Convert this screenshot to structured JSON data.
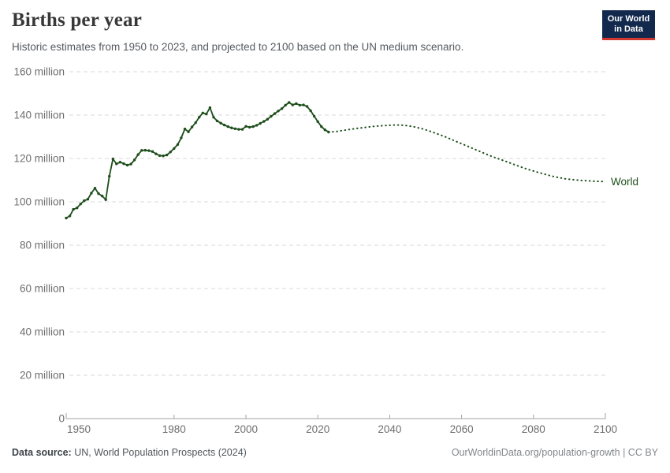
{
  "header": {
    "title": "Births per year",
    "subtitle": "Historic estimates from 1950 to 2023, and projected to 2100 based on the UN medium scenario.",
    "logo": {
      "line1": "Our World",
      "line2": "in Data",
      "bg_color": "#12284c",
      "accent_color": "#d0372e"
    }
  },
  "footer": {
    "source_label": "Data source:",
    "source_text": " UN, World Population Prospects (2024)",
    "credit": "OurWorldinData.org/population-growth | CC BY"
  },
  "chart_data": {
    "type": "line",
    "title": "Births per year",
    "subtitle": "Historic estimates from 1950 to 2023, and projected to 2100 based on the UN medium scenario.",
    "entity_label": "World",
    "unit": "million births per year",
    "xlim": [
      1950,
      2100
    ],
    "ylim_millions": [
      0,
      160
    ],
    "grid": true,
    "legend_position": "end-of-line",
    "line_color": "#1e4e1b",
    "axis_color": "#a3a3a3",
    "grid_color": "#dadada",
    "tick_label_color": "#6e6e6e",
    "x_ticks": [
      1950,
      1980,
      2000,
      2020,
      2040,
      2060,
      2080,
      2100
    ],
    "y_ticks": [
      {
        "value": 0,
        "label": "0"
      },
      {
        "value": 20,
        "label": "20 million"
      },
      {
        "value": 40,
        "label": "40 million"
      },
      {
        "value": 60,
        "label": "60 million"
      },
      {
        "value": 80,
        "label": "80 million"
      },
      {
        "value": 100,
        "label": "100 million"
      },
      {
        "value": 120,
        "label": "120 million"
      },
      {
        "value": 140,
        "label": "140 million"
      },
      {
        "value": 160,
        "label": "160 million"
      }
    ],
    "series": [
      {
        "name": "World — historic estimates",
        "style": "solid-with-markers",
        "points": [
          [
            1950,
            92.5
          ],
          [
            1951,
            93.5
          ],
          [
            1952,
            96.5
          ],
          [
            1953,
            97.2
          ],
          [
            1954,
            99.0
          ],
          [
            1955,
            100.5
          ],
          [
            1956,
            101.2
          ],
          [
            1957,
            104.0
          ],
          [
            1958,
            106.3
          ],
          [
            1959,
            103.8
          ],
          [
            1960,
            102.7
          ],
          [
            1961,
            101.0
          ],
          [
            1962,
            111.8
          ],
          [
            1963,
            119.8
          ],
          [
            1964,
            117.5
          ],
          [
            1965,
            118.3
          ],
          [
            1966,
            117.6
          ],
          [
            1967,
            116.9
          ],
          [
            1968,
            117.4
          ],
          [
            1969,
            119.3
          ],
          [
            1970,
            121.8
          ],
          [
            1971,
            123.7
          ],
          [
            1972,
            123.8
          ],
          [
            1973,
            123.6
          ],
          [
            1974,
            123.2
          ],
          [
            1975,
            122.1
          ],
          [
            1976,
            121.3
          ],
          [
            1977,
            121.2
          ],
          [
            1978,
            121.6
          ],
          [
            1979,
            123.0
          ],
          [
            1980,
            124.6
          ],
          [
            1981,
            126.4
          ],
          [
            1982,
            129.5
          ],
          [
            1983,
            133.6
          ],
          [
            1984,
            132.3
          ],
          [
            1985,
            134.5
          ],
          [
            1986,
            136.5
          ],
          [
            1987,
            139.0
          ],
          [
            1988,
            141.0
          ],
          [
            1989,
            140.5
          ],
          [
            1990,
            143.4
          ],
          [
            1991,
            139.0
          ],
          [
            1992,
            137.3
          ],
          [
            1993,
            136.3
          ],
          [
            1994,
            135.4
          ],
          [
            1995,
            134.7
          ],
          [
            1996,
            134.1
          ],
          [
            1997,
            133.7
          ],
          [
            1998,
            133.4
          ],
          [
            1999,
            133.4
          ],
          [
            2000,
            134.8
          ],
          [
            2001,
            134.4
          ],
          [
            2002,
            134.7
          ],
          [
            2003,
            135.3
          ],
          [
            2004,
            136.2
          ],
          [
            2005,
            137.1
          ],
          [
            2006,
            138.1
          ],
          [
            2007,
            139.4
          ],
          [
            2008,
            140.7
          ],
          [
            2009,
            141.9
          ],
          [
            2010,
            143.0
          ],
          [
            2011,
            144.6
          ],
          [
            2012,
            145.8
          ],
          [
            2013,
            144.7
          ],
          [
            2014,
            145.3
          ],
          [
            2015,
            144.6
          ],
          [
            2016,
            144.7
          ],
          [
            2017,
            144.0
          ],
          [
            2018,
            142.0
          ],
          [
            2019,
            139.5
          ],
          [
            2020,
            137.0
          ],
          [
            2021,
            134.7
          ],
          [
            2022,
            133.2
          ],
          [
            2023,
            132.2
          ]
        ]
      },
      {
        "name": "World — projected (UN medium scenario)",
        "style": "dotted",
        "points": [
          [
            2023,
            132.2
          ],
          [
            2025,
            132.4
          ],
          [
            2027,
            132.9
          ],
          [
            2029,
            133.4
          ],
          [
            2031,
            133.9
          ],
          [
            2033,
            134.3
          ],
          [
            2035,
            134.7
          ],
          [
            2037,
            135.0
          ],
          [
            2039,
            135.2
          ],
          [
            2041,
            135.4
          ],
          [
            2043,
            135.4
          ],
          [
            2045,
            135.1
          ],
          [
            2047,
            134.5
          ],
          [
            2049,
            133.7
          ],
          [
            2051,
            132.7
          ],
          [
            2053,
            131.5
          ],
          [
            2055,
            130.3
          ],
          [
            2057,
            128.9
          ],
          [
            2059,
            127.5
          ],
          [
            2061,
            126.1
          ],
          [
            2063,
            124.7
          ],
          [
            2065,
            123.3
          ],
          [
            2067,
            121.9
          ],
          [
            2069,
            120.6
          ],
          [
            2071,
            119.4
          ],
          [
            2073,
            118.2
          ],
          [
            2075,
            117.0
          ],
          [
            2077,
            115.8
          ],
          [
            2079,
            114.7
          ],
          [
            2081,
            113.7
          ],
          [
            2083,
            112.8
          ],
          [
            2085,
            111.9
          ],
          [
            2087,
            111.2
          ],
          [
            2089,
            110.6
          ],
          [
            2091,
            110.2
          ],
          [
            2093,
            109.9
          ],
          [
            2095,
            109.7
          ],
          [
            2097,
            109.5
          ],
          [
            2100,
            109.3
          ]
        ]
      }
    ]
  }
}
